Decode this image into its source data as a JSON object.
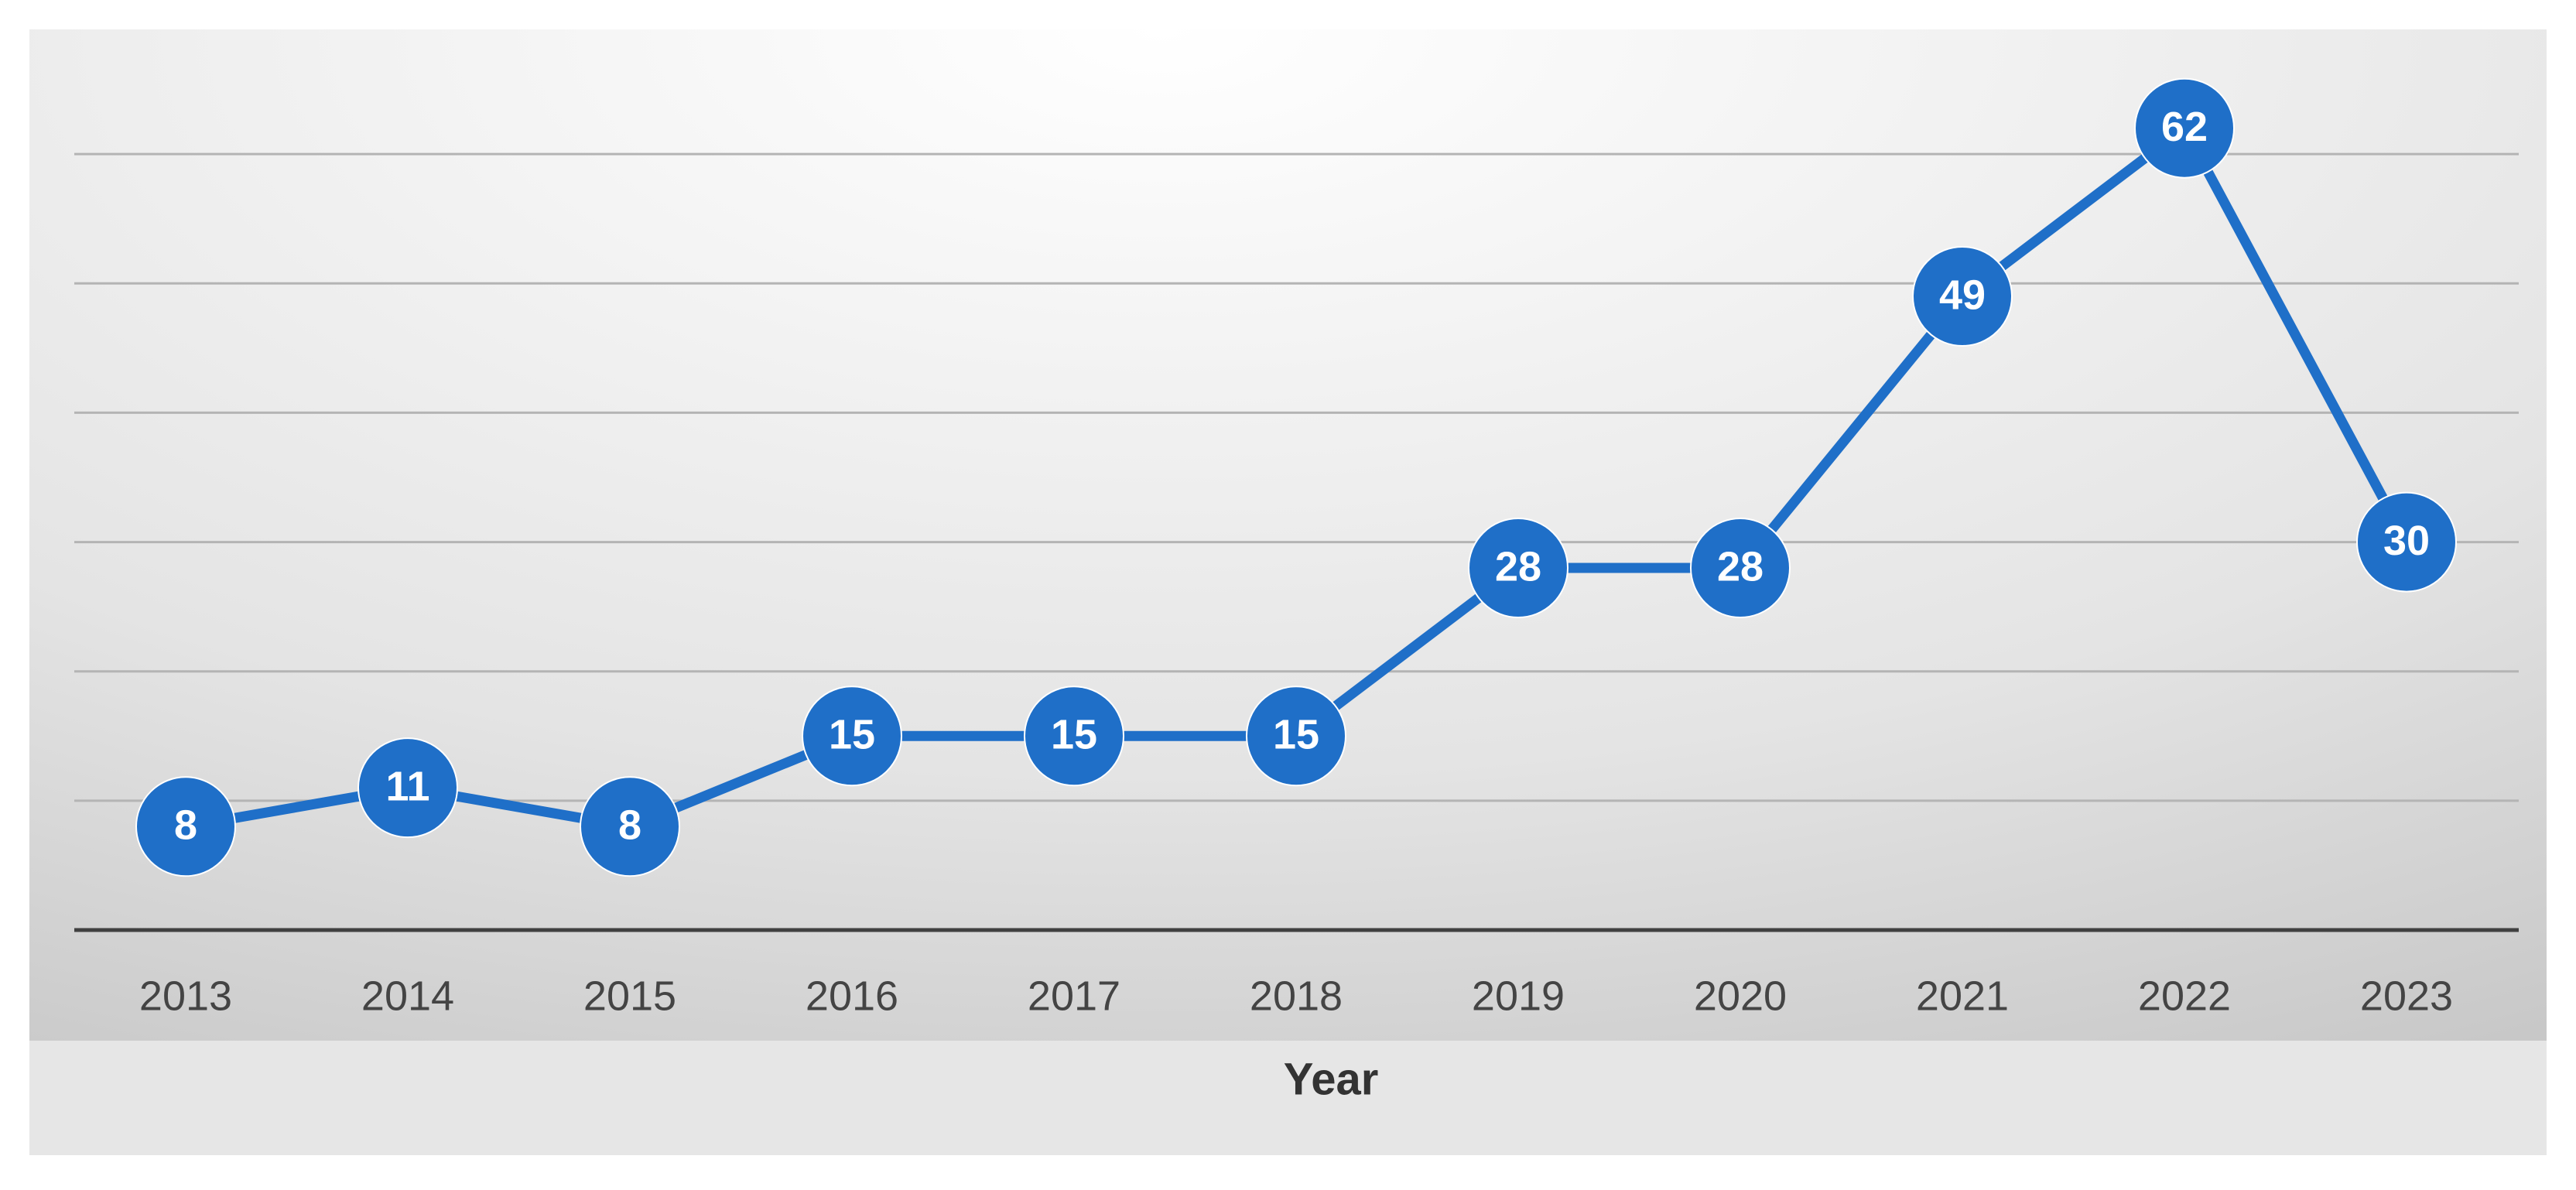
{
  "chart_data": {
    "type": "line",
    "x_label": "Year",
    "categories": [
      "2013",
      "2014",
      "2015",
      "2016",
      "2017",
      "2018",
      "2019",
      "2020",
      "2021",
      "2022",
      "2023"
    ],
    "values": [
      8,
      11,
      8,
      15,
      15,
      15,
      28,
      28,
      49,
      62,
      30
    ],
    "color": "#1f6fc8",
    "ylim": [
      0,
      70
    ],
    "yticks": [
      0,
      10,
      20,
      30,
      40,
      50,
      60
    ],
    "grid": true
  }
}
